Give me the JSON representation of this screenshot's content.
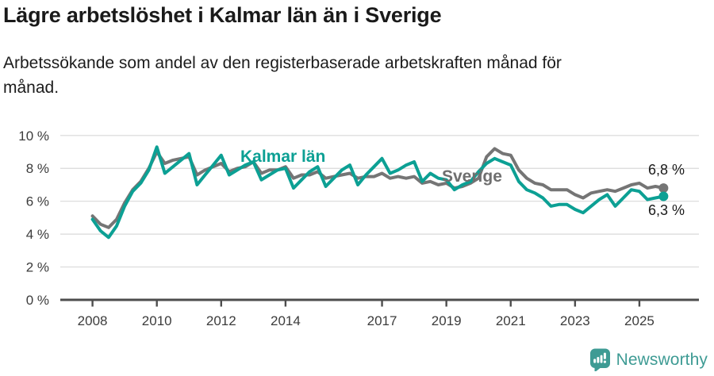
{
  "header": {
    "title": "Lägre arbetslöshet i Kalmar län än i Sverige",
    "subtitle": "Arbetssökande som andel av den registerbaserade arbetskraften månad för månad.",
    "subtitle_lines": [
      "Arbetssökande som andel av den registerbaserade arbetskraften månad för",
      "månad."
    ]
  },
  "colors": {
    "kalmar": "#0CA094",
    "sverige": "#757575",
    "sverige_label": "#6f6f6f",
    "grid": "#d9d9d9",
    "axis": "#4d4d4d",
    "tick_text": "#3c3c3c",
    "value_text": "#1a1a1a",
    "brand": "#3E9B94"
  },
  "chart_data": {
    "type": "line",
    "title": "Lägre arbetslöshet i Kalmar län än i Sverige",
    "subtitle": "Arbetssökande som andel av den registerbaserade arbetskraften månad för månad.",
    "x_unit": "year (quarterly points)",
    "x_start": 2008,
    "x_step": 0.25,
    "xlim": [
      2007.5,
      2026.6
    ],
    "ylim": [
      0,
      10
    ],
    "grid": true,
    "legend": "inline-labels",
    "yticks": [
      {
        "v": 0,
        "label": "0 %"
      },
      {
        "v": 2,
        "label": "2 %"
      },
      {
        "v": 4,
        "label": "4 %"
      },
      {
        "v": 6,
        "label": "6 %"
      },
      {
        "v": 8,
        "label": "8 %"
      },
      {
        "v": 10,
        "label": "10 %"
      }
    ],
    "xticks": [
      {
        "v": 2008,
        "label": "2008"
      },
      {
        "v": 2010,
        "label": "2010"
      },
      {
        "v": 2012,
        "label": "2012"
      },
      {
        "v": 2014,
        "label": "2014"
      },
      {
        "v": 2017,
        "label": "2017"
      },
      {
        "v": 2019,
        "label": "2019"
      },
      {
        "v": 2021,
        "label": "2021"
      },
      {
        "v": 2023,
        "label": "2023"
      },
      {
        "v": 2025,
        "label": "2025"
      }
    ],
    "series": [
      {
        "name": "Sverige",
        "color_key": "sverige",
        "end_label": "6,8 %",
        "end_value": 6.8,
        "values": [
          5.1,
          4.6,
          4.4,
          4.9,
          5.9,
          6.7,
          7.2,
          8.0,
          9.0,
          8.3,
          8.5,
          8.6,
          8.7,
          7.6,
          7.9,
          8.1,
          8.3,
          7.8,
          8.0,
          8.1,
          8.4,
          7.7,
          7.9,
          7.9,
          8.1,
          7.4,
          7.6,
          7.6,
          7.8,
          7.4,
          7.5,
          7.6,
          7.7,
          7.4,
          7.5,
          7.5,
          7.7,
          7.4,
          7.5,
          7.4,
          7.5,
          7.1,
          7.2,
          7.0,
          7.1,
          6.8,
          6.9,
          7.1,
          7.4,
          8.7,
          9.2,
          8.9,
          8.8,
          7.9,
          7.4,
          7.1,
          7.0,
          6.7,
          6.7,
          6.7,
          6.4,
          6.2,
          6.5,
          6.6,
          6.7,
          6.6,
          6.8,
          7.0,
          7.1,
          6.8,
          6.9,
          6.8
        ]
      },
      {
        "name": "Kalmar län",
        "color_key": "kalmar",
        "end_label": "6,3 %",
        "end_value": 6.3,
        "values": [
          4.9,
          4.2,
          3.8,
          4.5,
          5.7,
          6.6,
          7.1,
          7.9,
          9.3,
          7.7,
          8.1,
          8.5,
          8.9,
          7.0,
          7.6,
          8.2,
          8.8,
          7.6,
          7.9,
          8.2,
          8.4,
          7.3,
          7.6,
          7.9,
          8.0,
          6.8,
          7.3,
          7.8,
          8.1,
          6.9,
          7.4,
          7.9,
          8.2,
          7.0,
          7.6,
          8.1,
          8.6,
          7.7,
          7.9,
          8.2,
          8.4,
          7.2,
          7.7,
          7.4,
          7.3,
          6.7,
          7.0,
          7.2,
          7.8,
          8.3,
          8.6,
          8.4,
          8.2,
          7.2,
          6.7,
          6.5,
          6.2,
          5.7,
          5.8,
          5.8,
          5.5,
          5.3,
          5.7,
          6.1,
          6.4,
          5.7,
          6.2,
          6.7,
          6.6,
          6.1,
          6.2,
          6.3
        ]
      }
    ]
  },
  "annotations": {
    "kalmar_label": "Kalmar län",
    "sverige_label": "Sverige",
    "end_value_sverige": "6,8 %",
    "end_value_kalmar": "6,3 %"
  },
  "footer": {
    "brand": "Newsworthy"
  }
}
